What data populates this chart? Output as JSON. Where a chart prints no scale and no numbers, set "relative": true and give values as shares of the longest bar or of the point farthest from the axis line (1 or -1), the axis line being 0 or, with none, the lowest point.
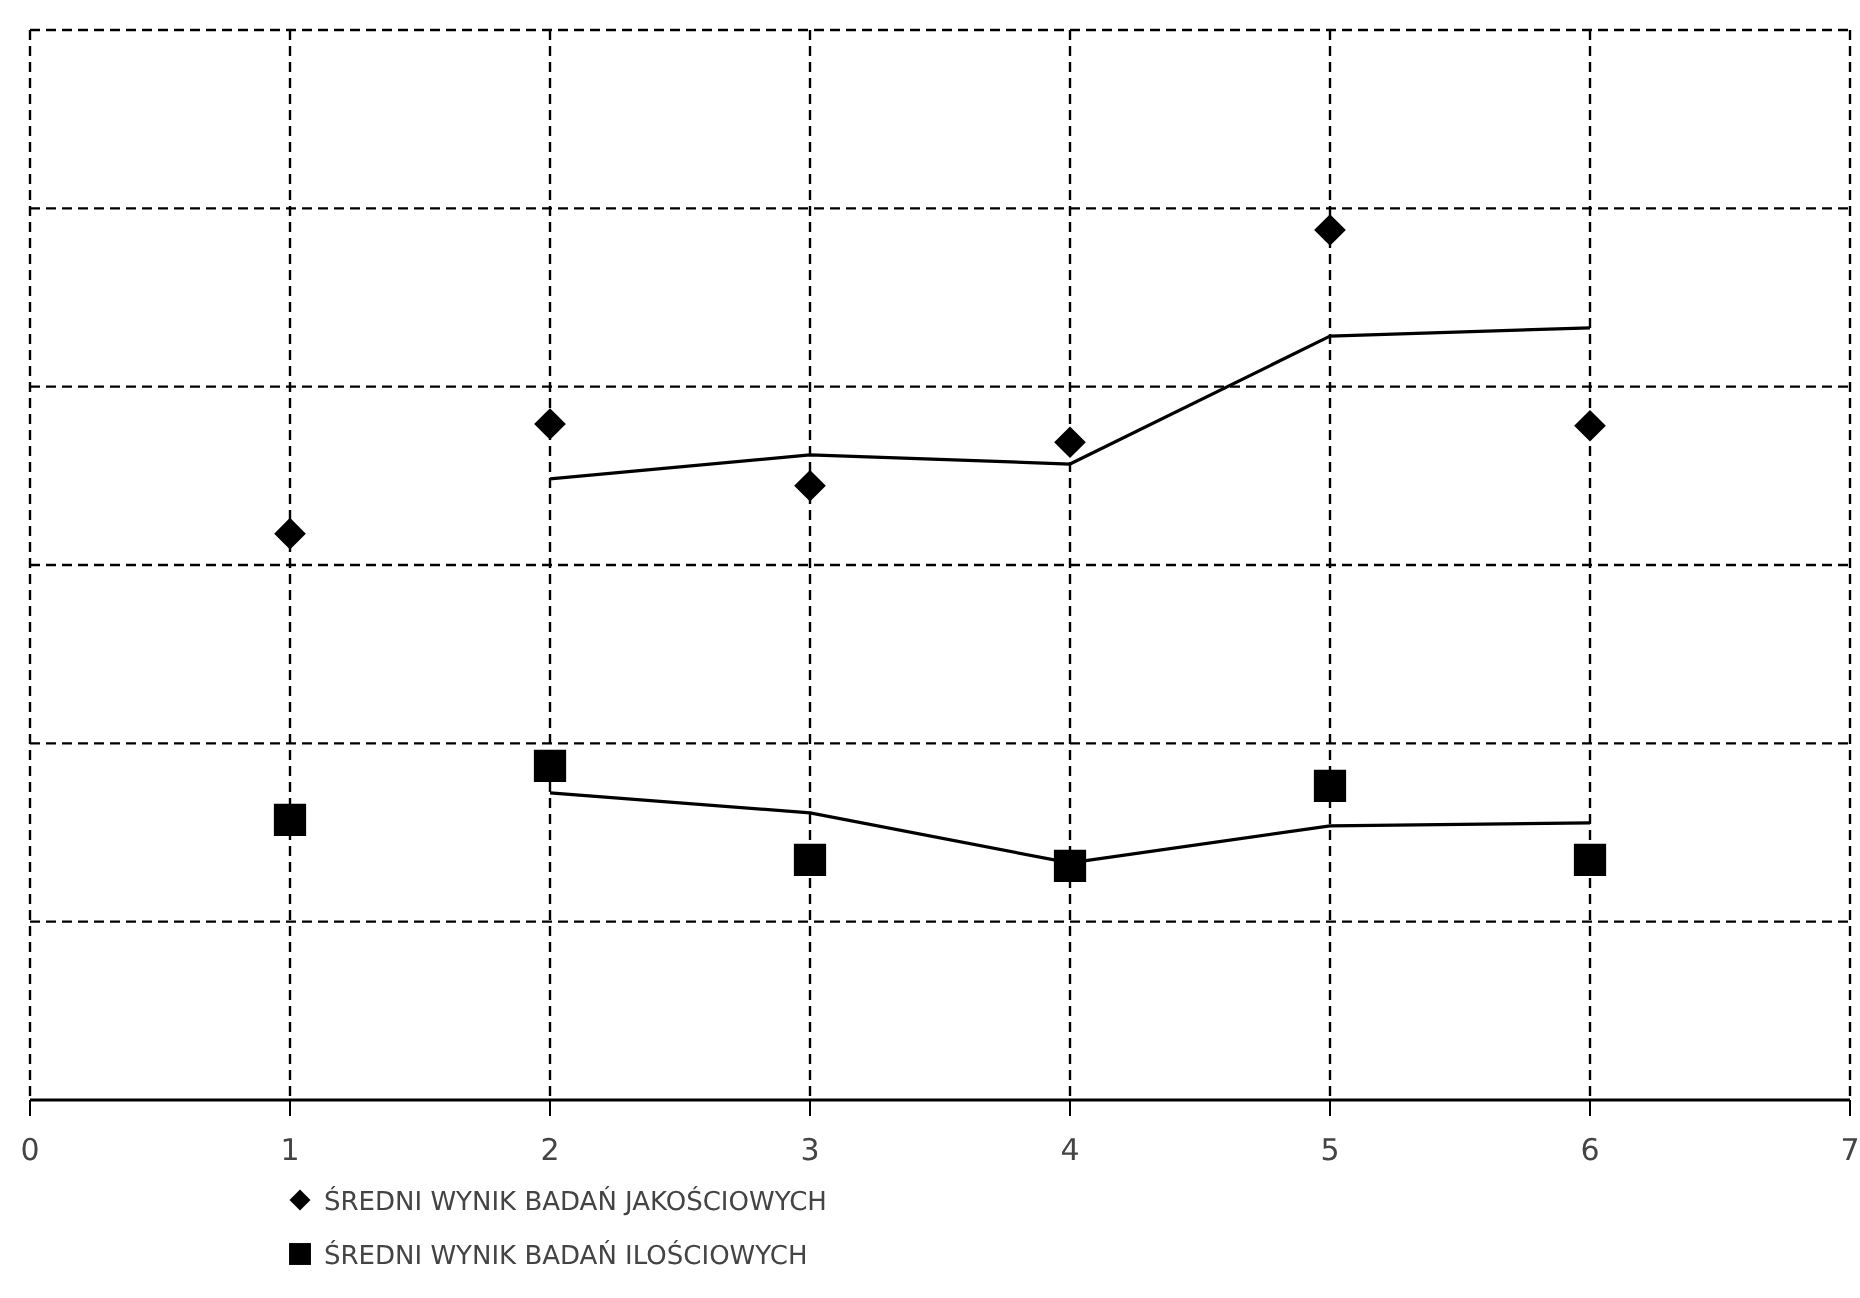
{
  "chart_data": {
    "type": "scatter",
    "relative": true,
    "xlim": [
      0,
      7
    ],
    "xticks": [
      0,
      1,
      2,
      3,
      4,
      5,
      6,
      7
    ],
    "grid": true,
    "legend": "bottom",
    "line_style": "solid",
    "series": [
      {
        "name": "ŚREDNI WYNIK BADAŃ JAKOŚCIOWYCH",
        "color": "#000000",
        "marker": "diamond",
        "x": [
          1,
          2,
          3,
          4,
          5,
          6
        ],
        "values": [
          0.651,
          0.777,
          0.706,
          0.756,
          1,
          0.775
        ]
      },
      {
        "name": "ŚREDNI WYNIK BADAŃ ILOŚCIOWYCH",
        "color": "#000000",
        "marker": "square",
        "x": [
          1,
          2,
          3,
          4,
          5,
          6
        ],
        "values": [
          0.322,
          0.384,
          0.276,
          0.269,
          0.361,
          0.276
        ]
      },
      {
        "type": "line",
        "color": "#000000",
        "x": [
          2,
          3,
          4,
          5,
          6
        ],
        "values": [
          0.714,
          0.7415,
          0.731,
          0.878,
          0.8875
        ]
      },
      {
        "type": "line",
        "color": "#000000",
        "x": [
          2,
          3,
          4,
          5,
          6
        ],
        "values": [
          0.353,
          0.33,
          0.2725,
          0.315,
          0.3185
        ]
      }
    ]
  }
}
